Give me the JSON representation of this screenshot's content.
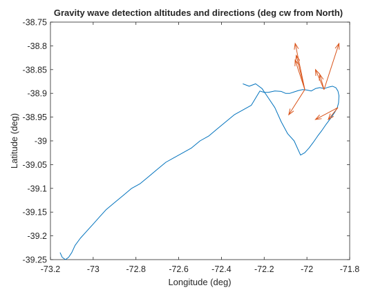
{
  "chart_data": {
    "type": "line",
    "title": "Gravity wave detection altitudes and directions (deg cw from North)",
    "xlabel": "Longitude (deg)",
    "ylabel": "Latitude (deg)",
    "xlim": [
      -73.2,
      -71.8
    ],
    "ylim": [
      -39.25,
      -38.75
    ],
    "xticks": [
      -73.2,
      -73,
      -72.8,
      -72.6,
      -72.4,
      -72.2,
      -72,
      -71.8
    ],
    "yticks": [
      -38.75,
      -38.8,
      -38.85,
      -38.9,
      -38.95,
      -39,
      -39.05,
      -39.1,
      -39.15,
      -39.2,
      -39.25
    ],
    "xtick_labels": [
      "-73.2",
      "-73",
      "-72.8",
      "-72.6",
      "-72.4",
      "-72.2",
      "-72",
      "-71.8"
    ],
    "ytick_labels": [
      "-38.75",
      "-38.8",
      "-38.85",
      "-38.9",
      "-38.95",
      "-39",
      "-39.05",
      "-39.1",
      "-39.15",
      "-39.2",
      "-39.25"
    ],
    "grid": false,
    "series": [
      {
        "color": "#0072bd",
        "x": [
          -73.155,
          -73.145,
          -73.13,
          -73.115,
          -73.1,
          -73.085,
          -73.06,
          -73.03,
          -73,
          -72.97,
          -72.94,
          -72.9,
          -72.86,
          -72.82,
          -72.78,
          -72.74,
          -72.7,
          -72.66,
          -72.62,
          -72.58,
          -72.54,
          -72.5,
          -72.46,
          -72.42,
          -72.38,
          -72.34,
          -72.3,
          -72.26,
          -72.22,
          -72.2,
          -72.18,
          -72.15,
          -72.12,
          -72.1,
          -72.08,
          -72.06,
          -72.04,
          -72.02,
          -72.0,
          -71.98,
          -71.96,
          -71.94,
          -71.92,
          -71.9,
          -71.88,
          -71.865,
          -71.855,
          -71.85,
          -71.852,
          -71.858,
          -71.87,
          -71.89,
          -71.91,
          -71.93,
          -71.95,
          -71.97,
          -71.99,
          -72.01,
          -72.03,
          -72.06,
          -72.09,
          -72.12,
          -72.15,
          -72.18,
          -72.21,
          -72.24,
          -72.27,
          -72.3
        ],
        "y": [
          -39.235,
          -39.245,
          -39.25,
          -39.245,
          -39.235,
          -39.22,
          -39.205,
          -39.19,
          -39.175,
          -39.16,
          -39.145,
          -39.13,
          -39.115,
          -39.1,
          -39.09,
          -39.075,
          -39.06,
          -39.045,
          -39.035,
          -39.025,
          -39.015,
          -39.0,
          -38.99,
          -38.975,
          -38.96,
          -38.945,
          -38.935,
          -38.925,
          -38.895,
          -38.898,
          -38.898,
          -38.895,
          -38.896,
          -38.9,
          -38.9,
          -38.897,
          -38.894,
          -38.892,
          -38.893,
          -38.895,
          -38.89,
          -38.888,
          -38.89,
          -38.887,
          -38.885,
          -38.888,
          -38.895,
          -38.905,
          -38.92,
          -38.93,
          -38.94,
          -38.953,
          -38.965,
          -38.978,
          -38.99,
          -39.003,
          -39.015,
          -39.025,
          -39.03,
          -39.0,
          -38.985,
          -38.96,
          -38.93,
          -38.91,
          -38.89,
          -38.88,
          -38.885,
          -38.88
        ]
      }
    ],
    "arrows": {
      "color": "#d95319",
      "items": [
        {
          "x0": -72.01,
          "y0": -38.892,
          "x1": -72.055,
          "y1": -38.795
        },
        {
          "x0": -72.01,
          "y0": -38.892,
          "x1": -72.055,
          "y1": -38.83
        },
        {
          "x0": -72.01,
          "y0": -38.892,
          "x1": -72.05,
          "y1": -38.82
        },
        {
          "x0": -72.01,
          "y0": -38.892,
          "x1": -72.085,
          "y1": -38.945
        },
        {
          "x0": -71.92,
          "y0": -38.892,
          "x1": -71.85,
          "y1": -38.795
        },
        {
          "x0": -71.92,
          "y0": -38.892,
          "x1": -71.96,
          "y1": -38.85
        },
        {
          "x0": -71.92,
          "y0": -38.892,
          "x1": -71.94,
          "y1": -38.86
        },
        {
          "x0": -71.855,
          "y0": -38.93,
          "x1": -71.9,
          "y1": -38.955
        },
        {
          "x0": -71.855,
          "y0": -38.93,
          "x1": -71.96,
          "y1": -38.955
        }
      ]
    }
  }
}
